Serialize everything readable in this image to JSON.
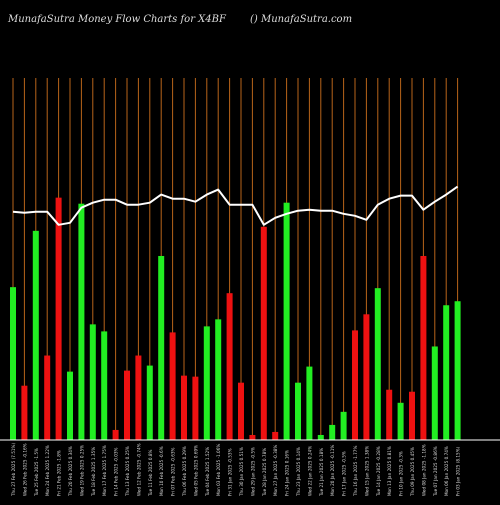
{
  "header": {
    "title": "MunafaSutra  Money Flow  Charts for X4BF",
    "source": "() MunafaSutra.com"
  },
  "chart_data": {
    "type": "bar",
    "categories": [
      "Thu 27 Feb",
      "Wed 26 Feb",
      "Tue 25 Feb",
      "Mon 24 Feb",
      "Fri 21 Feb",
      "Thu 20 Feb",
      "Wed 19 Feb",
      "Tue 18 Feb",
      "Mon 17 Feb",
      "Fri 14 Feb",
      "Thu 13 Feb",
      "Wed 12 Feb",
      "Tue 11 Feb",
      "Mon 10 Feb",
      "Fri 07 Feb",
      "Thu 06 Feb",
      "Wed 05 Feb",
      "Tue 04 Feb",
      "Mon 03 Feb",
      "Fri 31 Jan",
      "Thu 30 Jan",
      "Wed 29 Jan",
      "Tue 28 Jan",
      "Mon 27 Jan",
      "Fri 24 Jan",
      "Thu 23 Jan",
      "Wed 22 Jan",
      "Tue 21 Jan",
      "Mon 20 Jan",
      "Fri 17 Jan",
      "Thu 16 Jan",
      "Wed 15 Jan",
      "Tue 14 Jan",
      "Mon 13 Jan",
      "Fri 10 Jan",
      "Thu 09 Jan",
      "Wed 08 Jan",
      "Tue 07 Jan",
      "Mon 06 Jan",
      "Fri 03 Jan"
    ],
    "tick_labels": [
      "Thu 27 Feb 2025 (7.51%)",
      "Wed 26 Feb 2025 -0.16%",
      "Tue 25 Feb 2025 -1.5%",
      "Mon 24 Feb 2025 1.22%",
      "Fri 21 Feb 2025 -1.8%",
      "Thu 20 Feb 2025 0.34%",
      "Wed 19 Feb 2025 0.25%",
      "Tue 18 Feb 2025 1.35%",
      "Mon 17 Feb 2025 1.75%",
      "Fri 14 Feb 2025 -0.03%",
      "Thu 13 Feb 2025 0.25%",
      "Wed 12 Feb 2025 -0.74%",
      "Tue 11 Feb 2025 0.8%",
      "Mon 10 Feb 2025 -0.6%",
      "Fri 07 Feb 2025 -0.63%",
      "Thu 06 Feb 2025 0.29%",
      "Wed 05 Feb 2025 0.69%",
      "Tue 04 Feb 2025 1.52%",
      "Mon 03 Feb 2025 -1.06%",
      "Fri 31 Jan 2025 -0.53%",
      "Thu 30 Jan 2025 0.51%",
      "Wed 29 Jan 2025 -0.5%",
      "Tue 28 Jan 2025 0.78%",
      "Mon 27 Jan 2025 -0.38%",
      "Fri 24 Jan 2025 0.16%",
      "Thu 23 Jan 2025 0.14%",
      "Wed 22 Jan 2025 0.24%",
      "Tue 21 Jan 2025 0.18%",
      "Mon 20 Jan 2025 -0.11%",
      "Fri 17 Jan 2025 -0.5%",
      "Thu 16 Jan 2025 -1.77%",
      "Wed 15 Jan 2025 1.38%",
      "Tue 14 Jan 2025 -0.28%",
      "Mon 13 Jan 2025 0.81%",
      "Fri 10 Jan 2025 -0.3%",
      "Thu 09 Jan 2025 0.45%",
      "Wed 08 Jan 2025 -1.18%",
      "Tue 07 Jan 2025 -0.86%",
      "Mon 06 Jan 2025 0.74%",
      "Fri 03 Jan 2025 (8.15%)"
    ],
    "series": [
      {
        "values": [
          0.152,
          0.054,
          0.208,
          0.084,
          0.241,
          0.068,
          0.235,
          0.115,
          0.108,
          0.01,
          0.069,
          0.084,
          0.074,
          0.183,
          0.107,
          0.064,
          0.063,
          0.113,
          0.12,
          0.146,
          0.057,
          0.005,
          0.212,
          0.008,
          0.236,
          0.057,
          0.073,
          0.005,
          0.015,
          0.028,
          0.109,
          0.125,
          0.151,
          0.05,
          0.037,
          0.048,
          0.183,
          0.093,
          0.134,
          0.138
        ],
        "colors": [
          "green",
          "red",
          "green",
          "red",
          "red",
          "green",
          "green",
          "green",
          "green",
          "red",
          "red",
          "red",
          "green",
          "green",
          "red",
          "red",
          "red",
          "green",
          "green",
          "red",
          "red",
          "red",
          "red",
          "red",
          "green",
          "green",
          "green",
          "green",
          "green",
          "green",
          "red",
          "red",
          "green",
          "red",
          "green",
          "red",
          "red",
          "green",
          "green",
          "green"
        ]
      },
      {
        "type": "line",
        "values": [
          0.227,
          0.226,
          0.227,
          0.227,
          0.214,
          0.216,
          0.231,
          0.236,
          0.239,
          0.239,
          0.234,
          0.234,
          0.236,
          0.244,
          0.24,
          0.24,
          0.237,
          0.244,
          0.249,
          0.234,
          0.234,
          0.234,
          0.214,
          0.221,
          0.225,
          0.228,
          0.229,
          0.228,
          0.228,
          0.225,
          0.223,
          0.219,
          0.234,
          0.24,
          0.243,
          0.243,
          0.229,
          0.237,
          0.244,
          0.252
        ]
      }
    ],
    "ylim": [
      0,
      0.36
    ],
    "colors": {
      "background": "#000000",
      "gridline": "#b8641a",
      "up": "#22ee22",
      "down": "#ee1111",
      "line": "#ffffff",
      "text": "#dddddd",
      "baseline": "#ffffff"
    }
  }
}
